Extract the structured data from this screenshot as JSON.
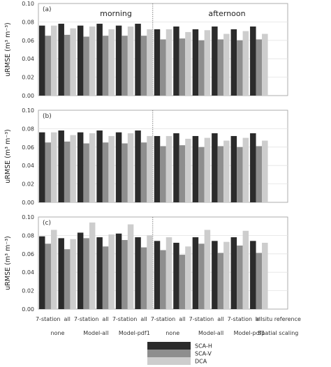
{
  "chart_data": {
    "type": "bar",
    "headers": [
      "morning",
      "afternoon"
    ],
    "ylabel": "uRMSE (m³ m⁻³)",
    "ylim": [
      0,
      0.1
    ],
    "yticks": [
      "0.00",
      "0.02",
      "0.04",
      "0.06",
      "0.08",
      "0.10"
    ],
    "panels": [
      "(a)",
      "(b)",
      "(c)"
    ],
    "categories": [
      "7-station",
      "all",
      "7-station",
      "all",
      "7-station",
      "all",
      "7-station",
      "all",
      "7-station",
      "all",
      "7-station",
      "all",
      "In situ reference"
    ],
    "group_labels": [
      "none",
      "Model-all",
      "Model-pdf1",
      "none",
      "Model-all",
      "Model-pdf1",
      "Spatial scaling"
    ],
    "legend": [
      {
        "name": "SCA-H",
        "color": "#2b2b2b"
      },
      {
        "name": "SCA-V",
        "color": "#8e8e8e"
      },
      {
        "name": "DCA",
        "color": "#cdcdcd"
      }
    ],
    "series_values": [
      [
        [
          0.076,
          0.065,
          0.076
        ],
        [
          0.078,
          0.066,
          0.073
        ],
        [
          0.076,
          0.064,
          0.075
        ],
        [
          0.078,
          0.065,
          0.072
        ],
        [
          0.076,
          0.065,
          0.075
        ],
        [
          0.078,
          0.065,
          0.072
        ],
        [
          0.072,
          0.061,
          0.072
        ],
        [
          0.075,
          0.062,
          0.069
        ],
        [
          0.072,
          0.06,
          0.071
        ],
        [
          0.075,
          0.061,
          0.067
        ],
        [
          0.072,
          0.06,
          0.07
        ],
        [
          0.075,
          0.061,
          0.067
        ]
      ],
      [
        [
          0.076,
          0.065,
          0.076
        ],
        [
          0.078,
          0.066,
          0.073
        ],
        [
          0.076,
          0.064,
          0.075
        ],
        [
          0.078,
          0.065,
          0.072
        ],
        [
          0.076,
          0.064,
          0.075
        ],
        [
          0.078,
          0.065,
          0.072
        ],
        [
          0.072,
          0.061,
          0.072
        ],
        [
          0.075,
          0.062,
          0.069
        ],
        [
          0.072,
          0.06,
          0.07
        ],
        [
          0.075,
          0.061,
          0.067
        ],
        [
          0.072,
          0.06,
          0.07
        ],
        [
          0.075,
          0.061,
          0.067
        ]
      ],
      [
        [
          0.079,
          0.071,
          0.086
        ],
        [
          0.077,
          0.065,
          0.076
        ],
        [
          0.083,
          0.077,
          0.094
        ],
        [
          0.078,
          0.068,
          0.081
        ],
        [
          0.082,
          0.075,
          0.092
        ],
        [
          0.078,
          0.067,
          0.08
        ],
        [
          0.074,
          0.064,
          0.078
        ],
        [
          0.072,
          0.059,
          0.068
        ],
        [
          0.078,
          0.071,
          0.086
        ],
        [
          0.074,
          0.061,
          0.073
        ],
        [
          0.078,
          0.069,
          0.085
        ],
        [
          0.074,
          0.061,
          0.072
        ]
      ]
    ]
  }
}
